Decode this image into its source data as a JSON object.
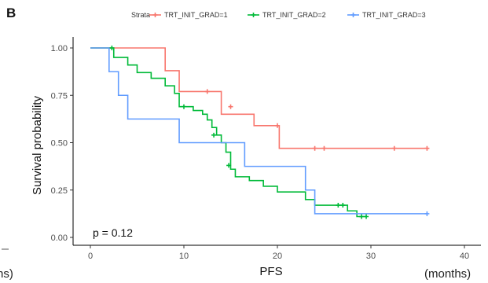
{
  "panel_letter": "B",
  "left_edge_fragment": "hs)",
  "units_label": "(months)",
  "p_value_text": "p = 0.12",
  "chart_data": {
    "type": "line",
    "subtype": "kaplan-meier step curve",
    "xlabel": "PFS",
    "ylabel": "Survival probability",
    "xlim": [
      0,
      40
    ],
    "ylim": [
      0,
      1
    ],
    "x_ticks": [
      0,
      10,
      20,
      30,
      40
    ],
    "y_ticks": [
      "0.00",
      "0.25",
      "0.50",
      "0.75",
      "1.00"
    ],
    "grid": false,
    "legend_title": "Strata",
    "legend_position": "top",
    "series": [
      {
        "name": "TRT_INIT_GRAD=1",
        "color": "#f8766d",
        "steps": [
          [
            0,
            1.0
          ],
          [
            8,
            0.88
          ],
          [
            9.5,
            0.77
          ],
          [
            14,
            0.65
          ],
          [
            17.5,
            0.59
          ],
          [
            20.2,
            0.47
          ],
          [
            36,
            0.47
          ]
        ],
        "censored": [
          [
            12.5,
            0.77
          ],
          [
            15,
            0.69
          ],
          [
            20,
            0.59
          ],
          [
            24,
            0.47
          ],
          [
            25,
            0.47
          ],
          [
            32.5,
            0.47
          ],
          [
            36,
            0.47
          ]
        ]
      },
      {
        "name": "TRT_INIT_GRAD=2",
        "color": "#00ba38",
        "steps": [
          [
            0,
            1.0
          ],
          [
            2.5,
            0.95
          ],
          [
            4,
            0.91
          ],
          [
            5,
            0.87
          ],
          [
            6.5,
            0.84
          ],
          [
            8,
            0.8
          ],
          [
            9,
            0.76
          ],
          [
            9.5,
            0.69
          ],
          [
            11,
            0.67
          ],
          [
            12,
            0.65
          ],
          [
            12.5,
            0.62
          ],
          [
            13,
            0.58
          ],
          [
            13.5,
            0.54
          ],
          [
            14,
            0.5
          ],
          [
            14.5,
            0.45
          ],
          [
            15,
            0.36
          ],
          [
            15.5,
            0.32
          ],
          [
            17,
            0.3
          ],
          [
            18.5,
            0.27
          ],
          [
            20,
            0.24
          ],
          [
            23,
            0.2
          ],
          [
            24,
            0.17
          ],
          [
            27.5,
            0.14
          ],
          [
            28.5,
            0.11
          ],
          [
            29.5,
            0.11
          ]
        ],
        "censored": [
          [
            2.3,
            1.0
          ],
          [
            10,
            0.69
          ],
          [
            13.2,
            0.54
          ],
          [
            14.8,
            0.38
          ],
          [
            26.5,
            0.17
          ],
          [
            27,
            0.17
          ],
          [
            29,
            0.11
          ],
          [
            29.5,
            0.11
          ]
        ]
      },
      {
        "name": "TRT_INIT_GRAD=3",
        "color": "#619cff",
        "steps": [
          [
            0,
            1.0
          ],
          [
            2,
            0.875
          ],
          [
            3,
            0.75
          ],
          [
            4,
            0.625
          ],
          [
            9.5,
            0.5
          ],
          [
            16.5,
            0.375
          ],
          [
            23,
            0.25
          ],
          [
            24,
            0.125
          ],
          [
            36,
            0.125
          ]
        ],
        "censored": [
          [
            36,
            0.125
          ]
        ]
      }
    ]
  }
}
